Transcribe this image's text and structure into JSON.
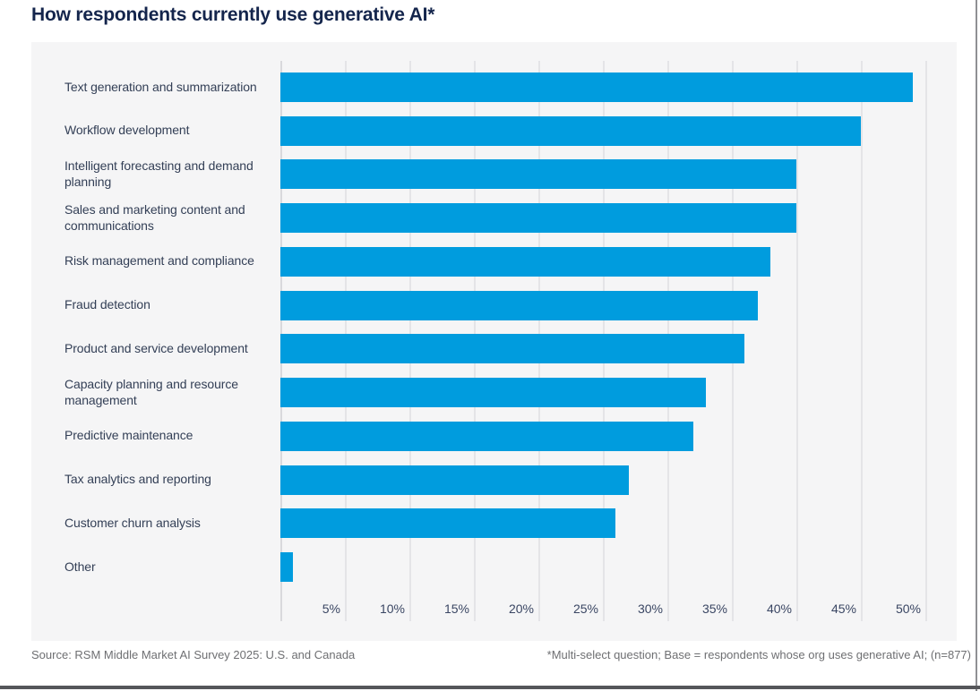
{
  "title": "How respondents currently use generative AI*",
  "footer": {
    "source": "Source: RSM Middle Market AI Survey 2025: U.S. and Canada",
    "note": "*Multi-select question; Base = respondents whose org uses generative AI; (n=877)"
  },
  "colors": {
    "bar": "#009CDE",
    "title_text": "#14254C",
    "category_text": "#333F56",
    "tick_text": "#3A4663",
    "panel_background": "#F5F5F6",
    "gridline": "#E4E4E7",
    "footer_text": "#6E6F72",
    "bottom_rule": "#55565A",
    "right_border": "#8F9094"
  },
  "chart_data": {
    "type": "bar",
    "orientation": "horizontal",
    "title": "How respondents currently use generative AI*",
    "categories": [
      "Text generation and summarization",
      "Workflow development",
      "Intelligent forecasting and demand planning",
      "Sales and marketing content and communications",
      "Risk management and compliance",
      "Fraud detection",
      "Product and service development",
      "Capacity planning and resource management",
      "Predictive maintenance",
      "Tax analytics and reporting",
      "Customer churn analysis",
      "Other"
    ],
    "values": [
      49,
      45,
      40,
      40,
      38,
      37,
      36,
      33,
      32,
      27,
      26,
      1
    ],
    "unit": "%",
    "xlabel": "",
    "ylabel": "",
    "xlim": [
      0,
      50
    ],
    "x_tick_step": 5,
    "x_tick_labels": [
      "5%",
      "10%",
      "15%",
      "20%",
      "25%",
      "30%",
      "35%",
      "40%",
      "45%",
      "50%"
    ],
    "grid": "vertical-gridlines-on",
    "legend": "none",
    "bar_color": "#009CDE"
  }
}
